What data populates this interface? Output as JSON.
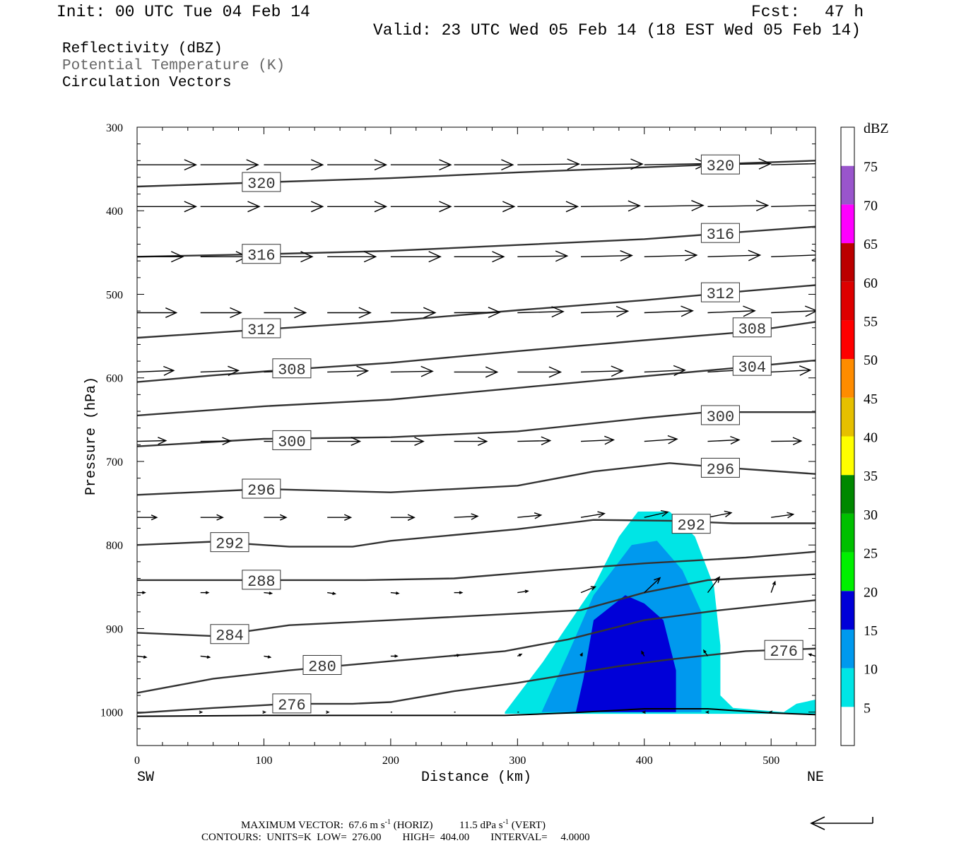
{
  "header": {
    "init": "Init: 00 UTC Tue 04 Feb 14",
    "fcst_label": "Fcst:",
    "fcst_value": "47 h",
    "valid": "Valid: 23 UTC Wed 05 Feb 14 (18 EST Wed 05 Feb 14)"
  },
  "legend": {
    "fill": "Reflectivity (dBZ)",
    "contour": "Potential Temperature (K)",
    "vectors": "Circulation Vectors"
  },
  "footer": {
    "max_vector_prefix": "MAXIMUM VECTOR:  67.6 m s",
    "max_vector_mid": " (HORIZ)          11.5 dPa s",
    "max_vector_suffix": " (VERT)",
    "exponent": "-1",
    "contours": "CONTOURS:  UNITS=K  LOW=  276.00        HIGH=  404.00        INTERVAL=     4.0000"
  },
  "colors": {
    "dbz_5": "#00e5e5",
    "dbz_10": "#0099ee",
    "dbz_15": "#0000d8",
    "dbz_20": "#00f000",
    "dbz_25": "#00c000",
    "dbz_30": "#008800",
    "dbz_35": "#ffff00",
    "dbz_40": "#e6c000",
    "dbz_45": "#ff8c00",
    "dbz_50": "#ff0000",
    "dbz_55": "#dd0000",
    "dbz_60": "#bb0000",
    "dbz_65": "#ff00ff",
    "dbz_70": "#9955cc",
    "contour_line": "#333333",
    "vector": "#000000"
  },
  "chart_data": {
    "type": "cross-section",
    "xlabel": "Distance (km)",
    "ylabel": "Pressure (hPa)",
    "xlim": [
      0,
      535
    ],
    "ylim": [
      1040,
      300
    ],
    "x_ticks": [
      0,
      100,
      200,
      300,
      400,
      500
    ],
    "y_ticks": [
      300,
      400,
      500,
      600,
      700,
      800,
      900,
      1000
    ],
    "x_end_labels": {
      "left": "SW",
      "right": "NE"
    },
    "colorbar": {
      "unit": "dBZ",
      "levels": [
        5,
        10,
        15,
        20,
        25,
        30,
        35,
        40,
        45,
        50,
        55,
        60,
        65,
        70,
        75
      ]
    },
    "surface_pressure": [
      [
        0,
        1005
      ],
      [
        100,
        1004
      ],
      [
        200,
        1004
      ],
      [
        290,
        1004
      ],
      [
        340,
        1001
      ],
      [
        400,
        996
      ],
      [
        450,
        996
      ],
      [
        500,
        1001
      ],
      [
        535,
        1003
      ]
    ],
    "reflectivity_regions": [
      {
        "dbz": 5,
        "outline": [
          [
            290,
            1000
          ],
          [
            320,
            940
          ],
          [
            360,
            850
          ],
          [
            380,
            790
          ],
          [
            395,
            760
          ],
          [
            420,
            760
          ],
          [
            440,
            790
          ],
          [
            455,
            850
          ],
          [
            460,
            920
          ],
          [
            460,
            980
          ],
          [
            470,
            995
          ],
          [
            510,
            1000
          ],
          [
            520,
            990
          ],
          [
            535,
            985
          ],
          [
            535,
            1002
          ],
          [
            290,
            1002
          ]
        ]
      },
      {
        "dbz": 10,
        "outline": [
          [
            319,
            1000
          ],
          [
            340,
            930
          ],
          [
            360,
            860
          ],
          [
            390,
            800
          ],
          [
            410,
            795
          ],
          [
            430,
            830
          ],
          [
            445,
            880
          ],
          [
            445,
            960
          ],
          [
            445,
            1000
          ]
        ]
      },
      {
        "dbz": 15,
        "outline": [
          [
            346,
            1000
          ],
          [
            352,
            960
          ],
          [
            360,
            890
          ],
          [
            385,
            860
          ],
          [
            400,
            870
          ],
          [
            415,
            890
          ],
          [
            425,
            950
          ],
          [
            425,
            1000
          ]
        ]
      }
    ],
    "theta_contours": [
      {
        "value": 320,
        "points": [
          [
            0,
            371
          ],
          [
            100,
            366
          ],
          [
            200,
            361
          ],
          [
            300,
            354
          ],
          [
            400,
            348
          ],
          [
            480,
            343
          ],
          [
            535,
            340
          ]
        ],
        "labels": [
          [
            98,
            366
          ],
          [
            460,
            345
          ]
        ]
      },
      {
        "value": 316,
        "points": [
          [
            0,
            455
          ],
          [
            100,
            452
          ],
          [
            200,
            448
          ],
          [
            300,
            441
          ],
          [
            400,
            434
          ],
          [
            480,
            425
          ],
          [
            535,
            419
          ]
        ],
        "labels": [
          [
            98,
            452
          ],
          [
            460,
            427
          ]
        ]
      },
      {
        "value": 312,
        "points": [
          [
            0,
            552
          ],
          [
            100,
            542
          ],
          [
            200,
            532
          ],
          [
            300,
            519
          ],
          [
            400,
            507
          ],
          [
            480,
            496
          ],
          [
            535,
            489
          ]
        ],
        "labels": [
          [
            98,
            541
          ],
          [
            460,
            498
          ]
        ]
      },
      {
        "value": 308,
        "points": [
          [
            0,
            605
          ],
          [
            60,
            597
          ],
          [
            120,
            590
          ],
          [
            200,
            582
          ],
          [
            300,
            568
          ],
          [
            400,
            555
          ],
          [
            480,
            545
          ],
          [
            535,
            533
          ]
        ],
        "labels": [
          [
            122,
            589
          ],
          [
            485,
            540
          ]
        ]
      },
      {
        "value": 304,
        "points": [
          [
            0,
            645
          ],
          [
            100,
            634
          ],
          [
            200,
            626
          ],
          [
            300,
            612
          ],
          [
            400,
            598
          ],
          [
            480,
            587
          ],
          [
            535,
            579
          ]
        ],
        "labels": [
          [
            485,
            586
          ]
        ]
      },
      {
        "value": 300,
        "points": [
          [
            0,
            682
          ],
          [
            100,
            673
          ],
          [
            200,
            671
          ],
          [
            300,
            664
          ],
          [
            400,
            648
          ],
          [
            450,
            641
          ],
          [
            535,
            641
          ]
        ],
        "labels": [
          [
            122,
            675
          ],
          [
            460,
            645
          ]
        ]
      },
      {
        "value": 296,
        "points": [
          [
            0,
            740
          ],
          [
            100,
            733
          ],
          [
            200,
            737
          ],
          [
            300,
            729
          ],
          [
            360,
            712
          ],
          [
            420,
            702
          ],
          [
            460,
            707
          ],
          [
            535,
            715
          ]
        ],
        "labels": [
          [
            98,
            733
          ],
          [
            460,
            708
          ]
        ]
      },
      {
        "value": 292,
        "points": [
          [
            0,
            800
          ],
          [
            60,
            796
          ],
          [
            120,
            802
          ],
          [
            170,
            802
          ],
          [
            200,
            795
          ],
          [
            300,
            781
          ],
          [
            360,
            770
          ],
          [
            420,
            771
          ],
          [
            470,
            774
          ],
          [
            535,
            774
          ]
        ],
        "labels": [
          [
            73,
            797
          ],
          [
            437,
            775
          ]
        ]
      },
      {
        "value": 288,
        "points": [
          [
            0,
            842
          ],
          [
            100,
            842
          ],
          [
            180,
            842
          ],
          [
            250,
            840
          ],
          [
            330,
            830
          ],
          [
            400,
            822
          ],
          [
            480,
            815
          ],
          [
            535,
            808
          ]
        ],
        "labels": [
          [
            98,
            842
          ]
        ]
      },
      {
        "value": 284,
        "points": [
          [
            0,
            905
          ],
          [
            60,
            909
          ],
          [
            120,
            896
          ],
          [
            200,
            890
          ],
          [
            300,
            882
          ],
          [
            350,
            878
          ],
          [
            400,
            857
          ],
          [
            450,
            842
          ],
          [
            535,
            835
          ]
        ],
        "labels": [
          [
            73,
            907
          ]
        ]
      },
      {
        "value": 280,
        "points": [
          [
            0,
            977
          ],
          [
            60,
            960
          ],
          [
            120,
            950
          ],
          [
            200,
            939
          ],
          [
            290,
            927
          ],
          [
            340,
            913
          ],
          [
            400,
            890
          ],
          [
            460,
            878
          ],
          [
            535,
            866
          ]
        ],
        "labels": [
          [
            146,
            944
          ]
        ]
      },
      {
        "value": 276,
        "points": [
          [
            0,
            1001
          ],
          [
            60,
            995
          ],
          [
            120,
            990
          ],
          [
            170,
            990
          ],
          [
            200,
            988
          ],
          [
            250,
            975
          ],
          [
            300,
            965
          ],
          [
            380,
            945
          ],
          [
            420,
            937
          ],
          [
            480,
            927
          ],
          [
            535,
            924
          ]
        ],
        "labels": [
          [
            122,
            990
          ],
          [
            510,
            926
          ]
        ]
      }
    ],
    "vector_rows": [
      {
        "p": 345,
        "x": [
          0,
          50,
          100,
          150,
          200,
          250,
          300,
          350,
          400,
          450,
          500
        ],
        "u": [
          45,
          44,
          45,
          45,
          46,
          45,
          47,
          47,
          48,
          48,
          47
        ],
        "w": [
          0,
          0,
          0,
          0,
          0,
          0,
          0.2,
          0.2,
          0.3,
          0.3,
          0.4
        ]
      },
      {
        "p": 395,
        "x": [
          0,
          50,
          100,
          150,
          200,
          250,
          300,
          350,
          400,
          450,
          500
        ],
        "u": [
          45,
          45,
          45,
          45,
          46,
          46,
          46,
          45,
          45,
          46,
          45
        ],
        "w": [
          0,
          0,
          0,
          0,
          0,
          0,
          0,
          0.2,
          0.3,
          0.3,
          0.4
        ]
      },
      {
        "p": 455,
        "x": [
          0,
          50,
          100,
          150,
          200,
          250,
          300,
          350,
          400,
          450,
          500
        ],
        "u": [
          35,
          36,
          37,
          37,
          38,
          38,
          38,
          39,
          40,
          40,
          40
        ],
        "w": [
          0,
          0,
          0,
          0,
          0,
          0,
          0.2,
          0.3,
          0.4,
          0.4,
          0.5
        ]
      },
      {
        "p": 522,
        "x": [
          0,
          50,
          100,
          150,
          200,
          250,
          300,
          350,
          400,
          450,
          500
        ],
        "u": [
          30,
          31,
          32,
          33,
          34,
          35,
          35,
          36,
          37,
          36,
          35
        ],
        "w": [
          0,
          0,
          0,
          0,
          0,
          0.1,
          0.3,
          0.4,
          0.5,
          0.5,
          0.5
        ]
      },
      {
        "p": 593,
        "x": [
          0,
          50,
          100,
          150,
          200,
          250,
          300,
          350,
          400,
          450,
          500
        ],
        "u": [
          28,
          29,
          30,
          31,
          32,
          33,
          33,
          32,
          31,
          30,
          30
        ],
        "w": [
          0.4,
          0.4,
          0.4,
          0.3,
          0.2,
          0,
          0,
          0.3,
          0.5,
          0.6,
          0.5
        ]
      },
      {
        "p": 676,
        "x": [
          0,
          50,
          100,
          150,
          200,
          250,
          300,
          350,
          400,
          450,
          500
        ],
        "u": [
          22,
          23,
          24,
          25,
          25,
          25,
          25,
          25,
          25,
          24,
          23
        ],
        "w": [
          0.2,
          0.1,
          0,
          0,
          0,
          0,
          0.2,
          0.4,
          0.6,
          0.4,
          0.1
        ]
      },
      {
        "p": 767,
        "x": [
          0,
          50,
          100,
          150,
          200,
          250,
          300,
          350,
          400,
          450,
          500
        ],
        "u": [
          15,
          17,
          17,
          18,
          18,
          18,
          18,
          18,
          18,
          18,
          17
        ],
        "w": [
          0,
          0,
          0,
          0,
          0,
          0.3,
          0.6,
          1.0,
          1.4,
          1.2,
          0.8
        ]
      },
      {
        "p": 857,
        "x": [
          0,
          50,
          100,
          150,
          200,
          250,
          300,
          350,
          400,
          450,
          500
        ],
        "u": [
          6,
          6,
          6,
          6,
          6,
          6,
          8,
          11,
          12,
          9,
          3
        ],
        "w": [
          0,
          0,
          -0.2,
          -0.3,
          -0.2,
          0,
          0.4,
          1.5,
          3.8,
          4.0,
          2.8
        ]
      },
      {
        "p": 933,
        "x": [
          0,
          50,
          100,
          150,
          200,
          250,
          300,
          350,
          400,
          450,
          500,
          535
        ],
        "u": [
          7,
          7,
          5,
          4,
          5,
          4,
          3,
          1,
          -2,
          -3,
          -4,
          -5
        ],
        "w": [
          -0.3,
          -0.3,
          -0.3,
          -0.2,
          0,
          0.3,
          0.5,
          0.7,
          1.2,
          1.5,
          1.0,
          0.5
        ]
      },
      {
        "p": 1000,
        "x": [
          50,
          100,
          150,
          200,
          250,
          300,
          350,
          400,
          450,
          500
        ],
        "u": [
          1,
          1,
          1,
          0,
          0,
          0,
          0,
          -1,
          -1,
          -1
        ],
        "w": [
          0,
          0,
          0,
          0.2,
          0.2,
          0.2,
          0,
          0,
          0,
          0
        ]
      }
    ]
  }
}
